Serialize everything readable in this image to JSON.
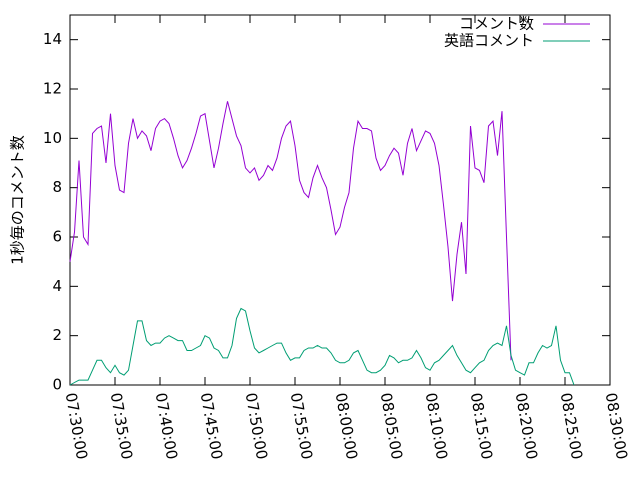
{
  "chart_data": {
    "type": "line",
    "ylabel": "1秒毎のコメント数",
    "ylim": [
      0,
      15
    ],
    "xlim": [
      "07:30:00",
      "08:30:00"
    ],
    "yticks": [
      "0",
      "2",
      "4",
      "6",
      "8",
      "10",
      "12",
      "14"
    ],
    "xticks": [
      "07:30:00",
      "07:35:00",
      "07:40:00",
      "07:45:00",
      "07:50:00",
      "07:55:00",
      "08:00:00",
      "08:05:00",
      "08:10:00",
      "08:15:00",
      "08:20:00",
      "08:25:00",
      "08:30:00"
    ],
    "grid": false,
    "legend_position": "top-right",
    "series": [
      {
        "name": "コメント数",
        "color": "#9400d3",
        "points": [
          [
            "07:30:00",
            5.0
          ],
          [
            "07:30:30",
            6.2
          ],
          [
            "07:31:00",
            9.1
          ],
          [
            "07:31:30",
            6.0
          ],
          [
            "07:32:00",
            5.7
          ],
          [
            "07:32:30",
            10.2
          ],
          [
            "07:33:00",
            10.4
          ],
          [
            "07:33:30",
            10.5
          ],
          [
            "07:34:00",
            9.0
          ],
          [
            "07:34:30",
            11.0
          ],
          [
            "07:35:00",
            8.9
          ],
          [
            "07:35:30",
            7.9
          ],
          [
            "07:36:00",
            7.8
          ],
          [
            "07:36:30",
            9.8
          ],
          [
            "07:37:00",
            10.8
          ],
          [
            "07:37:30",
            10.0
          ],
          [
            "07:38:00",
            10.3
          ],
          [
            "07:38:30",
            10.1
          ],
          [
            "07:39:00",
            9.5
          ],
          [
            "07:39:30",
            10.4
          ],
          [
            "07:40:00",
            10.7
          ],
          [
            "07:40:30",
            10.8
          ],
          [
            "07:41:00",
            10.6
          ],
          [
            "07:41:30",
            10.0
          ],
          [
            "07:42:00",
            9.3
          ],
          [
            "07:42:30",
            8.8
          ],
          [
            "07:43:00",
            9.1
          ],
          [
            "07:43:30",
            9.6
          ],
          [
            "07:44:00",
            10.2
          ],
          [
            "07:44:30",
            10.9
          ],
          [
            "07:45:00",
            11.0
          ],
          [
            "07:45:30",
            9.9
          ],
          [
            "07:46:00",
            8.8
          ],
          [
            "07:46:30",
            9.6
          ],
          [
            "07:47:00",
            10.6
          ],
          [
            "07:47:30",
            11.5
          ],
          [
            "07:48:00",
            10.8
          ],
          [
            "07:48:30",
            10.1
          ],
          [
            "07:49:00",
            9.7
          ],
          [
            "07:49:30",
            8.8
          ],
          [
            "07:50:00",
            8.6
          ],
          [
            "07:50:30",
            8.8
          ],
          [
            "07:51:00",
            8.3
          ],
          [
            "07:51:30",
            8.5
          ],
          [
            "07:52:00",
            8.9
          ],
          [
            "07:52:30",
            8.7
          ],
          [
            "07:53:00",
            9.2
          ],
          [
            "07:53:30",
            10.0
          ],
          [
            "07:54:00",
            10.5
          ],
          [
            "07:54:30",
            10.7
          ],
          [
            "07:55:00",
            9.7
          ],
          [
            "07:55:30",
            8.3
          ],
          [
            "07:56:00",
            7.8
          ],
          [
            "07:56:30",
            7.6
          ],
          [
            "07:57:00",
            8.4
          ],
          [
            "07:57:30",
            8.9
          ],
          [
            "07:58:00",
            8.4
          ],
          [
            "07:58:30",
            8.0
          ],
          [
            "07:59:00",
            7.1
          ],
          [
            "07:59:30",
            6.1
          ],
          [
            "08:00:00",
            6.4
          ],
          [
            "08:00:30",
            7.2
          ],
          [
            "08:01:00",
            7.8
          ],
          [
            "08:01:30",
            9.6
          ],
          [
            "08:02:00",
            10.7
          ],
          [
            "08:02:30",
            10.4
          ],
          [
            "08:03:00",
            10.4
          ],
          [
            "08:03:30",
            10.3
          ],
          [
            "08:04:00",
            9.2
          ],
          [
            "08:04:30",
            8.7
          ],
          [
            "08:05:00",
            8.9
          ],
          [
            "08:05:30",
            9.3
          ],
          [
            "08:06:00",
            9.6
          ],
          [
            "08:06:30",
            9.4
          ],
          [
            "08:07:00",
            8.5
          ],
          [
            "08:07:30",
            9.8
          ],
          [
            "08:08:00",
            10.4
          ],
          [
            "08:08:30",
            9.5
          ],
          [
            "08:09:00",
            9.9
          ],
          [
            "08:09:30",
            10.3
          ],
          [
            "08:10:00",
            10.2
          ],
          [
            "08:10:30",
            9.8
          ],
          [
            "08:11:00",
            8.9
          ],
          [
            "08:11:30",
            7.3
          ],
          [
            "08:12:00",
            5.6
          ],
          [
            "08:12:30",
            3.4
          ],
          [
            "08:13:00",
            5.3
          ],
          [
            "08:13:30",
            6.6
          ],
          [
            "08:14:00",
            4.5
          ],
          [
            "08:14:30",
            10.5
          ],
          [
            "08:15:00",
            8.8
          ],
          [
            "08:15:30",
            8.7
          ],
          [
            "08:16:00",
            8.2
          ],
          [
            "08:16:30",
            10.5
          ],
          [
            "08:17:00",
            10.7
          ],
          [
            "08:17:30",
            9.3
          ],
          [
            "08:18:00",
            11.1
          ],
          [
            "08:18:30",
            6.0
          ],
          [
            "08:19:00",
            1.0
          ]
        ]
      },
      {
        "name": "英語コメント",
        "color": "#009e73",
        "points": [
          [
            "07:30:00",
            0.0
          ],
          [
            "07:30:30",
            0.1
          ],
          [
            "07:31:00",
            0.2
          ],
          [
            "07:31:30",
            0.2
          ],
          [
            "07:32:00",
            0.2
          ],
          [
            "07:32:30",
            0.6
          ],
          [
            "07:33:00",
            1.0
          ],
          [
            "07:33:30",
            1.0
          ],
          [
            "07:34:00",
            0.7
          ],
          [
            "07:34:30",
            0.5
          ],
          [
            "07:35:00",
            0.8
          ],
          [
            "07:35:30",
            0.5
          ],
          [
            "07:36:00",
            0.4
          ],
          [
            "07:36:30",
            0.6
          ],
          [
            "07:37:00",
            1.6
          ],
          [
            "07:37:30",
            2.6
          ],
          [
            "07:38:00",
            2.6
          ],
          [
            "07:38:30",
            1.8
          ],
          [
            "07:39:00",
            1.6
          ],
          [
            "07:39:30",
            1.7
          ],
          [
            "07:40:00",
            1.7
          ],
          [
            "07:40:30",
            1.9
          ],
          [
            "07:41:00",
            2.0
          ],
          [
            "07:41:30",
            1.9
          ],
          [
            "07:42:00",
            1.8
          ],
          [
            "07:42:30",
            1.8
          ],
          [
            "07:43:00",
            1.4
          ],
          [
            "07:43:30",
            1.4
          ],
          [
            "07:44:00",
            1.5
          ],
          [
            "07:44:30",
            1.6
          ],
          [
            "07:45:00",
            2.0
          ],
          [
            "07:45:30",
            1.9
          ],
          [
            "07:46:00",
            1.5
          ],
          [
            "07:46:30",
            1.4
          ],
          [
            "07:47:00",
            1.1
          ],
          [
            "07:47:30",
            1.1
          ],
          [
            "07:48:00",
            1.6
          ],
          [
            "07:48:30",
            2.7
          ],
          [
            "07:49:00",
            3.1
          ],
          [
            "07:49:30",
            3.0
          ],
          [
            "07:50:00",
            2.2
          ],
          [
            "07:50:30",
            1.5
          ],
          [
            "07:51:00",
            1.3
          ],
          [
            "07:51:30",
            1.4
          ],
          [
            "07:52:00",
            1.5
          ],
          [
            "07:52:30",
            1.6
          ],
          [
            "07:53:00",
            1.7
          ],
          [
            "07:53:30",
            1.7
          ],
          [
            "07:54:00",
            1.3
          ],
          [
            "07:54:30",
            1.0
          ],
          [
            "07:55:00",
            1.1
          ],
          [
            "07:55:30",
            1.1
          ],
          [
            "07:56:00",
            1.4
          ],
          [
            "07:56:30",
            1.5
          ],
          [
            "07:57:00",
            1.5
          ],
          [
            "07:57:30",
            1.6
          ],
          [
            "07:58:00",
            1.5
          ],
          [
            "07:58:30",
            1.5
          ],
          [
            "07:59:00",
            1.3
          ],
          [
            "07:59:30",
            1.0
          ],
          [
            "08:00:00",
            0.9
          ],
          [
            "08:00:30",
            0.9
          ],
          [
            "08:01:00",
            1.0
          ],
          [
            "08:01:30",
            1.3
          ],
          [
            "08:02:00",
            1.4
          ],
          [
            "08:02:30",
            1.0
          ],
          [
            "08:03:00",
            0.6
          ],
          [
            "08:03:30",
            0.5
          ],
          [
            "08:04:00",
            0.5
          ],
          [
            "08:04:30",
            0.6
          ],
          [
            "08:05:00",
            0.8
          ],
          [
            "08:05:30",
            1.2
          ],
          [
            "08:06:00",
            1.1
          ],
          [
            "08:06:30",
            0.9
          ],
          [
            "08:07:00",
            1.0
          ],
          [
            "08:07:30",
            1.0
          ],
          [
            "08:08:00",
            1.1
          ],
          [
            "08:08:30",
            1.4
          ],
          [
            "08:09:00",
            1.1
          ],
          [
            "08:09:30",
            0.7
          ],
          [
            "08:10:00",
            0.6
          ],
          [
            "08:10:30",
            0.9
          ],
          [
            "08:11:00",
            1.0
          ],
          [
            "08:11:30",
            1.2
          ],
          [
            "08:12:00",
            1.4
          ],
          [
            "08:12:30",
            1.6
          ],
          [
            "08:13:00",
            1.2
          ],
          [
            "08:13:30",
            0.9
          ],
          [
            "08:14:00",
            0.6
          ],
          [
            "08:14:30",
            0.5
          ],
          [
            "08:15:00",
            0.7
          ],
          [
            "08:15:30",
            0.9
          ],
          [
            "08:16:00",
            1.0
          ],
          [
            "08:16:30",
            1.4
          ],
          [
            "08:17:00",
            1.6
          ],
          [
            "08:17:30",
            1.7
          ],
          [
            "08:18:00",
            1.6
          ],
          [
            "08:18:30",
            2.4
          ],
          [
            "08:19:00",
            1.2
          ],
          [
            "08:19:30",
            0.6
          ],
          [
            "08:20:00",
            0.5
          ],
          [
            "08:20:30",
            0.4
          ],
          [
            "08:21:00",
            0.9
          ],
          [
            "08:21:30",
            0.9
          ],
          [
            "08:22:00",
            1.3
          ],
          [
            "08:22:30",
            1.6
          ],
          [
            "08:23:00",
            1.5
          ],
          [
            "08:23:30",
            1.6
          ],
          [
            "08:24:00",
            2.4
          ],
          [
            "08:24:30",
            1.0
          ],
          [
            "08:25:00",
            0.5
          ],
          [
            "08:25:30",
            0.5
          ],
          [
            "08:26:00",
            0.0
          ]
        ]
      }
    ]
  }
}
